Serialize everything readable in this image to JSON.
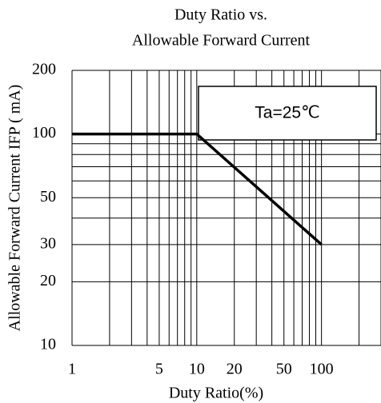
{
  "chart_data": {
    "type": "line",
    "title": [
      "Duty Ratio vs.",
      "Allowable Forward Current"
    ],
    "x_label": "Duty Ratio(%)",
    "y_label": "Allowable Forward Current IFP ( mA)",
    "annotation": "Ta=25℃",
    "log_x": true,
    "log_y": true,
    "grid": true,
    "x": [
      1,
      10,
      100
    ],
    "series": [
      {
        "name": null,
        "color": "#000000",
        "values": [
          100,
          100,
          30
        ]
      }
    ],
    "xlim": [
      1,
      300
    ],
    "ylim": [
      10,
      200
    ],
    "xticks": [
      1,
      5,
      10,
      20,
      50,
      100
    ],
    "yticks": [
      10,
      20,
      30,
      50,
      100,
      200
    ],
    "x_gridlines": [
      1,
      2,
      3,
      4,
      5,
      6,
      7,
      8,
      9,
      10,
      20,
      30,
      40,
      50,
      60,
      70,
      80,
      90,
      100,
      200,
      300
    ],
    "y_gridlines": [
      10,
      20,
      30,
      40,
      50,
      60,
      70,
      80,
      90,
      100,
      200
    ]
  }
}
